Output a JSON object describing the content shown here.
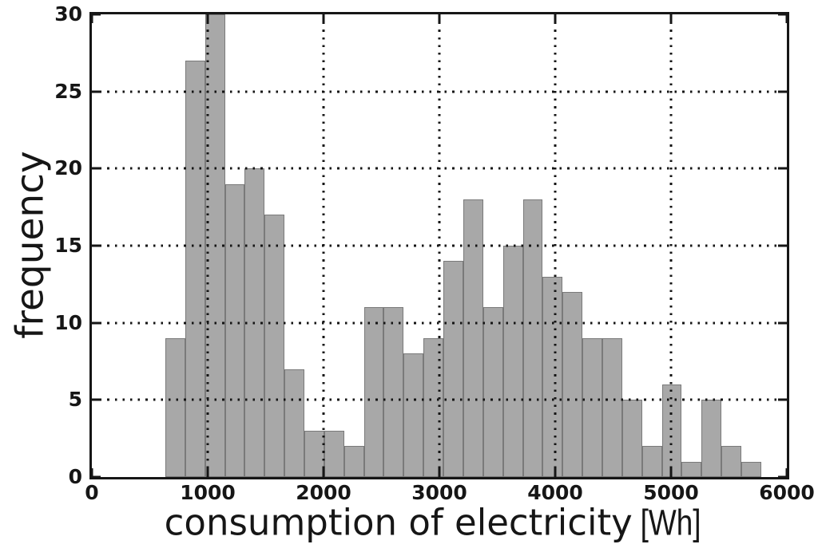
{
  "figure": {
    "xlabel_main": "consumption of electricity",
    "xlabel_unit": "[Wh]",
    "ylabel": "frequency"
  },
  "chart_data": {
    "type": "bar",
    "subtype": "histogram",
    "title": "",
    "xlabel": "consumption of electricity [Wh]",
    "ylabel": "frequency",
    "xlim": [
      0,
      6000
    ],
    "ylim": [
      0,
      30
    ],
    "xticks": [
      0,
      1000,
      2000,
      3000,
      4000,
      5000,
      6000
    ],
    "yticks": [
      0,
      5,
      10,
      15,
      20,
      25,
      30
    ],
    "grid": true,
    "grid_style": "dotted",
    "grid_above_bars": true,
    "bin_start": 634,
    "bin_width": 171.5,
    "counts": [
      9,
      27,
      30,
      19,
      20,
      17,
      7,
      3,
      3,
      2,
      11,
      11,
      8,
      9,
      14,
      18,
      11,
      15,
      18,
      13,
      12,
      9,
      9,
      5,
      2,
      6,
      1,
      5,
      2,
      1
    ],
    "colors": {
      "bar_fill": "#a8a8a8",
      "bar_edge": "#7a7a7a",
      "axis": "#161616",
      "grid": "#141414",
      "background": "#ffffff"
    }
  }
}
